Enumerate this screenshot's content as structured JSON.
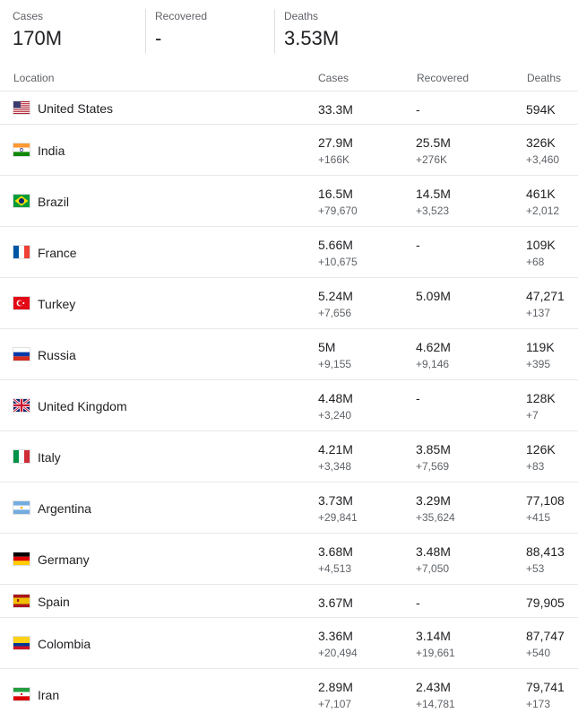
{
  "summary": {
    "cases": {
      "label": "Cases",
      "value": "170M"
    },
    "recovered": {
      "label": "Recovered",
      "value": "-"
    },
    "deaths": {
      "label": "Deaths",
      "value": "3.53M"
    }
  },
  "table": {
    "headers": {
      "location": "Location",
      "cases": "Cases",
      "recovered": "Recovered",
      "deaths": "Deaths"
    },
    "rows": [
      {
        "flag": "us-flag-icon",
        "location": "United States",
        "cases": "33.3M",
        "cases_delta": "",
        "recovered": "-",
        "recovered_delta": "",
        "deaths": "594K",
        "deaths_delta": ""
      },
      {
        "flag": "india-flag-icon",
        "location": "India",
        "cases": "27.9M",
        "cases_delta": "+166K",
        "recovered": "25.5M",
        "recovered_delta": "+276K",
        "deaths": "326K",
        "deaths_delta": "+3,460"
      },
      {
        "flag": "brazil-flag-icon",
        "location": "Brazil",
        "cases": "16.5M",
        "cases_delta": "+79,670",
        "recovered": "14.5M",
        "recovered_delta": "+3,523",
        "deaths": "461K",
        "deaths_delta": "+2,012"
      },
      {
        "flag": "france-flag-icon",
        "location": "France",
        "cases": "5.66M",
        "cases_delta": "+10,675",
        "recovered": "-",
        "recovered_delta": "",
        "deaths": "109K",
        "deaths_delta": "+68"
      },
      {
        "flag": "turkey-flag-icon",
        "location": "Turkey",
        "cases": "5.24M",
        "cases_delta": "+7,656",
        "recovered": "5.09M",
        "recovered_delta": "",
        "deaths": "47,271",
        "deaths_delta": "+137"
      },
      {
        "flag": "russia-flag-icon",
        "location": "Russia",
        "cases": "5M",
        "cases_delta": "+9,155",
        "recovered": "4.62M",
        "recovered_delta": "+9,146",
        "deaths": "119K",
        "deaths_delta": "+395"
      },
      {
        "flag": "uk-flag-icon",
        "location": "United Kingdom",
        "cases": "4.48M",
        "cases_delta": "+3,240",
        "recovered": "-",
        "recovered_delta": "",
        "deaths": "128K",
        "deaths_delta": "+7"
      },
      {
        "flag": "italy-flag-icon",
        "location": "Italy",
        "cases": "4.21M",
        "cases_delta": "+3,348",
        "recovered": "3.85M",
        "recovered_delta": "+7,569",
        "deaths": "126K",
        "deaths_delta": "+83"
      },
      {
        "flag": "argentina-flag-icon",
        "location": "Argentina",
        "cases": "3.73M",
        "cases_delta": "+29,841",
        "recovered": "3.29M",
        "recovered_delta": "+35,624",
        "deaths": "77,108",
        "deaths_delta": "+415"
      },
      {
        "flag": "germany-flag-icon",
        "location": "Germany",
        "cases": "3.68M",
        "cases_delta": "+4,513",
        "recovered": "3.48M",
        "recovered_delta": "+7,050",
        "deaths": "88,413",
        "deaths_delta": "+53"
      },
      {
        "flag": "spain-flag-icon",
        "location": "Spain",
        "cases": "3.67M",
        "cases_delta": "",
        "recovered": "-",
        "recovered_delta": "",
        "deaths": "79,905",
        "deaths_delta": ""
      },
      {
        "flag": "colombia-flag-icon",
        "location": "Colombia",
        "cases": "3.36M",
        "cases_delta": "+20,494",
        "recovered": "3.14M",
        "recovered_delta": "+19,661",
        "deaths": "87,747",
        "deaths_delta": "+540"
      },
      {
        "flag": "iran-flag-icon",
        "location": "Iran",
        "cases": "2.89M",
        "cases_delta": "+7,107",
        "recovered": "2.43M",
        "recovered_delta": "+14,781",
        "deaths": "79,741",
        "deaths_delta": "+173"
      }
    ]
  }
}
